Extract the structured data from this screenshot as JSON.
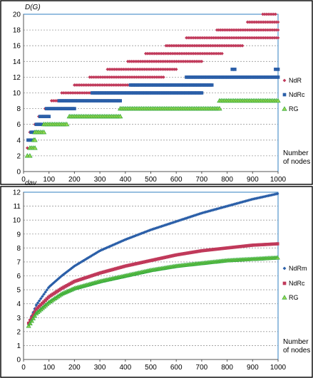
{
  "chart_data": [
    {
      "type": "scatter",
      "ylabel": "D(G)",
      "xlabel_lines": [
        "Number",
        "of nodes"
      ],
      "xlim": [
        0,
        1000
      ],
      "ylim": [
        0,
        20
      ],
      "xticks": [
        0,
        100,
        200,
        300,
        400,
        500,
        600,
        700,
        800,
        900,
        1000
      ],
      "yticks": [
        0,
        2,
        4,
        6,
        8,
        10,
        12,
        14,
        16,
        18,
        20
      ],
      "grid": true,
      "legend_position": "right",
      "series": [
        {
          "name": "NdR",
          "marker": "diamond",
          "color": "#c0395a",
          "segments": [
            [
              15,
              25,
              3
            ],
            [
              25,
              45,
              5
            ],
            [
              45,
              70,
              6
            ],
            [
              60,
              100,
              7
            ],
            [
              85,
              170,
              8
            ],
            [
              110,
              230,
              9
            ],
            [
              150,
              350,
              10
            ],
            [
              200,
              450,
              11
            ],
            [
              260,
              550,
              12
            ],
            [
              330,
              600,
              13
            ],
            [
              410,
              700,
              14
            ],
            [
              480,
              780,
              15
            ],
            [
              560,
              860,
              16
            ],
            [
              640,
              1000,
              17
            ],
            [
              760,
              1000,
              18
            ],
            [
              880,
              1000,
              19
            ],
            [
              940,
              990,
              20
            ]
          ]
        },
        {
          "name": "NdRc",
          "marker": "square",
          "color": "#2b5fa8",
          "segments": [
            [
              18,
              30,
              4
            ],
            [
              30,
              55,
              5
            ],
            [
              50,
              70,
              6
            ],
            [
              65,
              100,
              7
            ],
            [
              90,
              200,
              8
            ],
            [
              140,
              380,
              9
            ],
            [
              270,
              700,
              10
            ],
            [
              420,
              740,
              11
            ],
            [
              640,
              1000,
              12
            ],
            [
              820,
              830,
              13
            ],
            [
              990,
              1000,
              13
            ]
          ]
        },
        {
          "name": "RG",
          "marker": "triangle",
          "color": "#2ea83a",
          "segments": [
            [
              15,
              25,
              2
            ],
            [
              25,
              45,
              3
            ],
            [
              40,
              45,
              4
            ],
            [
              45,
              80,
              5
            ],
            [
              80,
              170,
              6
            ],
            [
              180,
              380,
              7
            ],
            [
              380,
              770,
              8
            ],
            [
              770,
              1000,
              9
            ]
          ]
        }
      ]
    },
    {
      "type": "line",
      "ylabel": "dav",
      "xlabel_lines": [
        "Number",
        "of nodes"
      ],
      "xlim": [
        0,
        1000
      ],
      "ylim": [
        0,
        12
      ],
      "xticks": [
        0,
        100,
        200,
        300,
        400,
        500,
        600,
        700,
        800,
        900,
        1000
      ],
      "yticks": [
        0,
        1,
        2,
        3,
        4,
        5,
        6,
        7,
        8,
        9,
        10,
        11,
        12
      ],
      "grid": true,
      "legend_position": "right",
      "series": [
        {
          "name": "NdRm",
          "marker": "diamond",
          "color": "#2b5fa8",
          "x": [
            20,
            50,
            100,
            150,
            200,
            300,
            400,
            500,
            600,
            700,
            800,
            900,
            1000
          ],
          "y": [
            2.6,
            3.9,
            5.2,
            6.0,
            6.7,
            7.8,
            8.6,
            9.3,
            9.9,
            10.5,
            11.0,
            11.5,
            11.9
          ]
        },
        {
          "name": "NdRc",
          "marker": "square",
          "color": "#c0395a",
          "x": [
            20,
            50,
            100,
            150,
            200,
            300,
            400,
            500,
            600,
            700,
            800,
            900,
            1000
          ],
          "y": [
            2.6,
            3.6,
            4.5,
            5.1,
            5.6,
            6.2,
            6.7,
            7.1,
            7.5,
            7.8,
            8.0,
            8.2,
            8.3
          ]
        },
        {
          "name": "RG",
          "marker": "triangle",
          "color": "#2ea83a",
          "x": [
            20,
            50,
            100,
            150,
            200,
            300,
            400,
            500,
            600,
            700,
            800,
            900,
            1000
          ],
          "y": [
            2.4,
            3.3,
            4.1,
            4.7,
            5.1,
            5.6,
            6.0,
            6.4,
            6.7,
            6.9,
            7.1,
            7.2,
            7.3
          ]
        }
      ]
    }
  ]
}
